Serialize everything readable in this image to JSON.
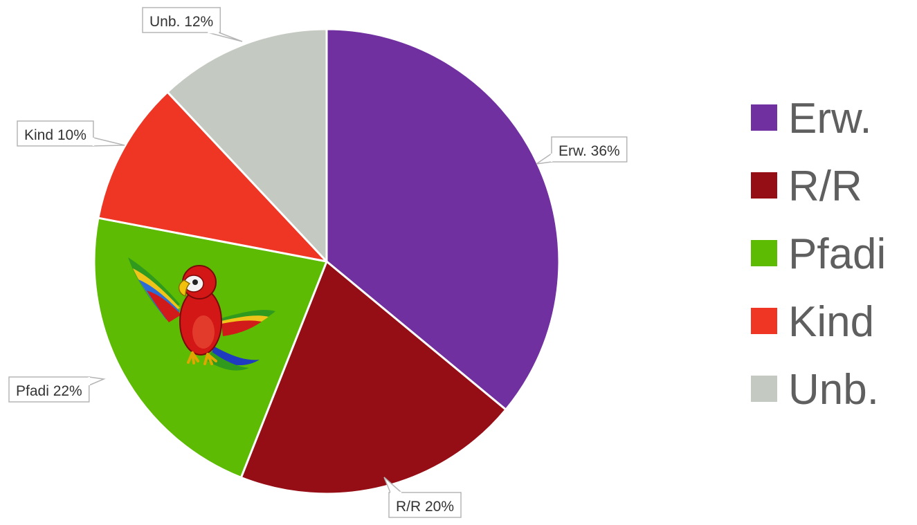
{
  "chart_data": {
    "type": "pie",
    "legend_position": "right",
    "start_angle_deg": 0,
    "direction": "clockwise",
    "slices": [
      {
        "name": "Erw.",
        "value": 36,
        "data_label": "Erw. 36%",
        "color": "#7030a0"
      },
      {
        "name": "R/R",
        "value": 20,
        "data_label": "R/R 20%",
        "color": "#960e15"
      },
      {
        "name": "Pfadi",
        "value": 22,
        "data_label": "Pfadi 22%",
        "color": "#5cbb02"
      },
      {
        "name": "Kind",
        "value": 10,
        "data_label": "Kind 10%",
        "color": "#ef3523"
      },
      {
        "name": "Unb.",
        "value": 12,
        "data_label": "Unb. 12%",
        "color": "#c4c9c1"
      }
    ],
    "decoration": "parrot-mascot"
  }
}
